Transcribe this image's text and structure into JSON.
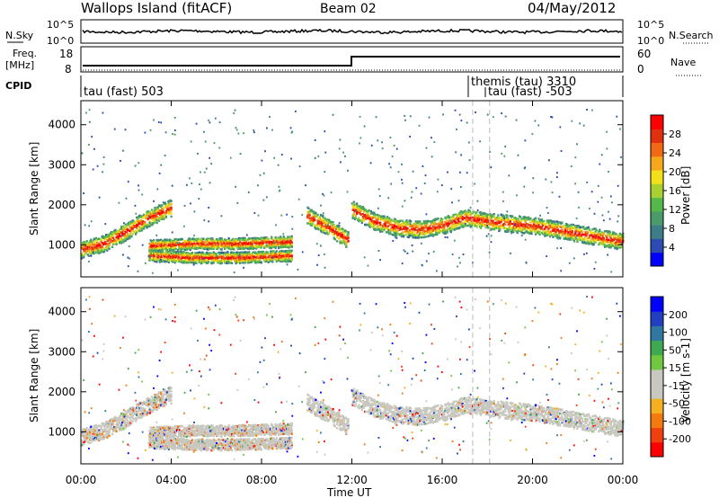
{
  "header": {
    "station": "Wallops Island (fitACF)",
    "beam": "Beam 02",
    "date": "04/May/2012"
  },
  "nsky_panel": {
    "left_label": "N.Sky",
    "left_ticks": [
      "10^5",
      "10^0"
    ],
    "right_label": "N.Search",
    "right_ticks": [
      "10^5",
      "10^0"
    ]
  },
  "freq_panel": {
    "left_label_line1": "Freq.",
    "left_label_line2": "[MHz]",
    "left_ticks": [
      "18",
      "8"
    ],
    "right_label": "Nave",
    "right_ticks": [
      "60",
      "0"
    ]
  },
  "cpid_panel": {
    "label": "CPID",
    "entries": [
      {
        "text": "tau (fast) 503",
        "time": 0.05
      },
      {
        "text": "themis (tau) 3310",
        "time": 17.35
      },
      {
        "text": "tau (fast) -503",
        "time": 18.1
      }
    ]
  },
  "x_axis": {
    "label": "Time UT",
    "ticks": [
      "00:00",
      "04:00",
      "08:00",
      "12:00",
      "16:00",
      "20:00",
      "00:00"
    ]
  },
  "chart_data": [
    {
      "type": "heatmap",
      "title": "Power",
      "ylabel": "Slant Range [km]",
      "xlim": [
        0,
        24
      ],
      "ylim": [
        200,
        4600
      ],
      "yticks": [
        1000,
        2000,
        3000,
        4000
      ],
      "colorbar": {
        "label": "Power [dB]",
        "range": [
          0,
          32
        ],
        "ticks": [
          "4",
          "8",
          "12",
          "16",
          "20",
          "24",
          "28"
        ],
        "colors": [
          "#0000ff",
          "#2d4bb0",
          "#3d7d88",
          "#4a9a6a",
          "#55b84a",
          "#a8d030",
          "#f2e01a",
          "#f5a81a",
          "#f06a14",
          "#e03010",
          "#ff0000"
        ]
      },
      "echo_bands": [
        {
          "t": [
            0,
            1,
            2,
            3,
            4
          ],
          "range": [
            900,
            1050,
            1350,
            1700,
            1950
          ]
        },
        {
          "t": [
            3,
            5,
            7,
            9.3
          ],
          "range": [
            1000,
            1050,
            1050,
            1100
          ]
        },
        {
          "t": [
            3,
            5,
            7,
            9.3
          ],
          "range": [
            750,
            700,
            700,
            750
          ]
        },
        {
          "t": [
            10,
            10.8,
            11.8
          ],
          "range": [
            1750,
            1500,
            1150
          ]
        },
        {
          "t": [
            12,
            13,
            14,
            15,
            16,
            17,
            18,
            20,
            22,
            24
          ],
          "range": [
            1900,
            1600,
            1450,
            1400,
            1500,
            1700,
            1600,
            1500,
            1300,
            1100
          ]
        }
      ],
      "cpid_change_times": [
        17.35,
        18.1
      ],
      "freq_step_time": 12.0
    },
    {
      "type": "heatmap",
      "title": "Velocity",
      "ylabel": "Slant Range [km]",
      "xlim": [
        0,
        24
      ],
      "ylim": [
        200,
        4600
      ],
      "yticks": [
        1000,
        2000,
        3000,
        4000
      ],
      "colorbar": {
        "label": "Velocity [m s-1]",
        "range": [
          -240,
          240
        ],
        "ticks": [
          "200",
          "100",
          "50",
          "15",
          "-15",
          "-50",
          "-100",
          "-200"
        ],
        "colors": [
          "#ff0000",
          "#f04010",
          "#f47a10",
          "#f4b020",
          "#c8c8c0",
          "#c8c8c0",
          "#70c840",
          "#40a850",
          "#3078a0",
          "#2040c0",
          "#0000ff"
        ]
      },
      "dominant_velocity": "-15 to 15 (grey)"
    }
  ]
}
